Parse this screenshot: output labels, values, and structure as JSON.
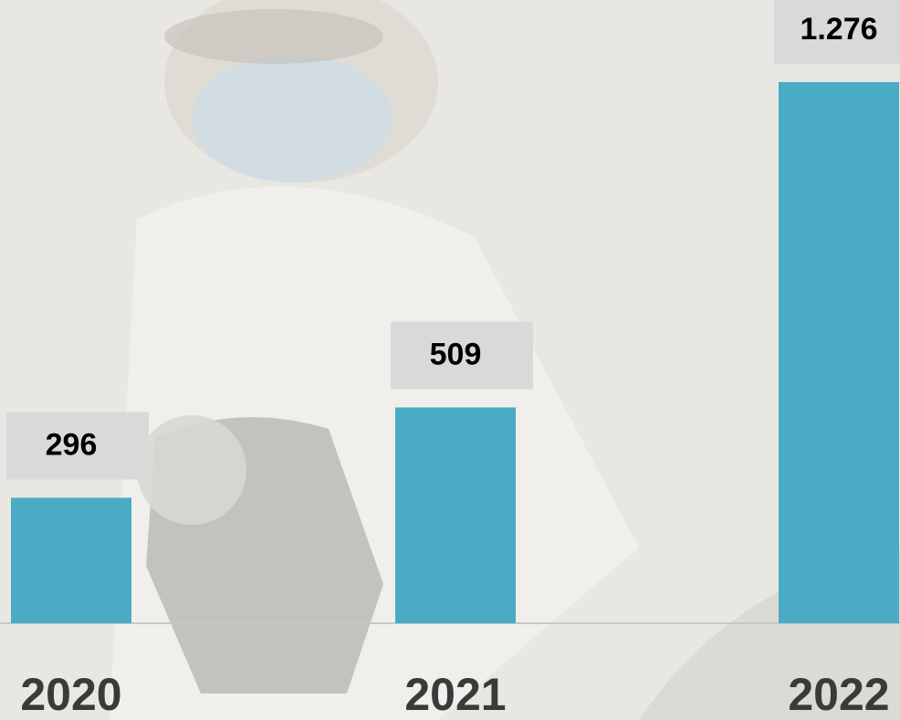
{
  "chart_data": {
    "type": "bar",
    "categories": [
      "2020",
      "2021",
      "2022"
    ],
    "values": [
      296,
      509,
      1276
    ],
    "value_labels": [
      "296",
      "509",
      "1.276"
    ],
    "color": "#4aabc4"
  }
}
